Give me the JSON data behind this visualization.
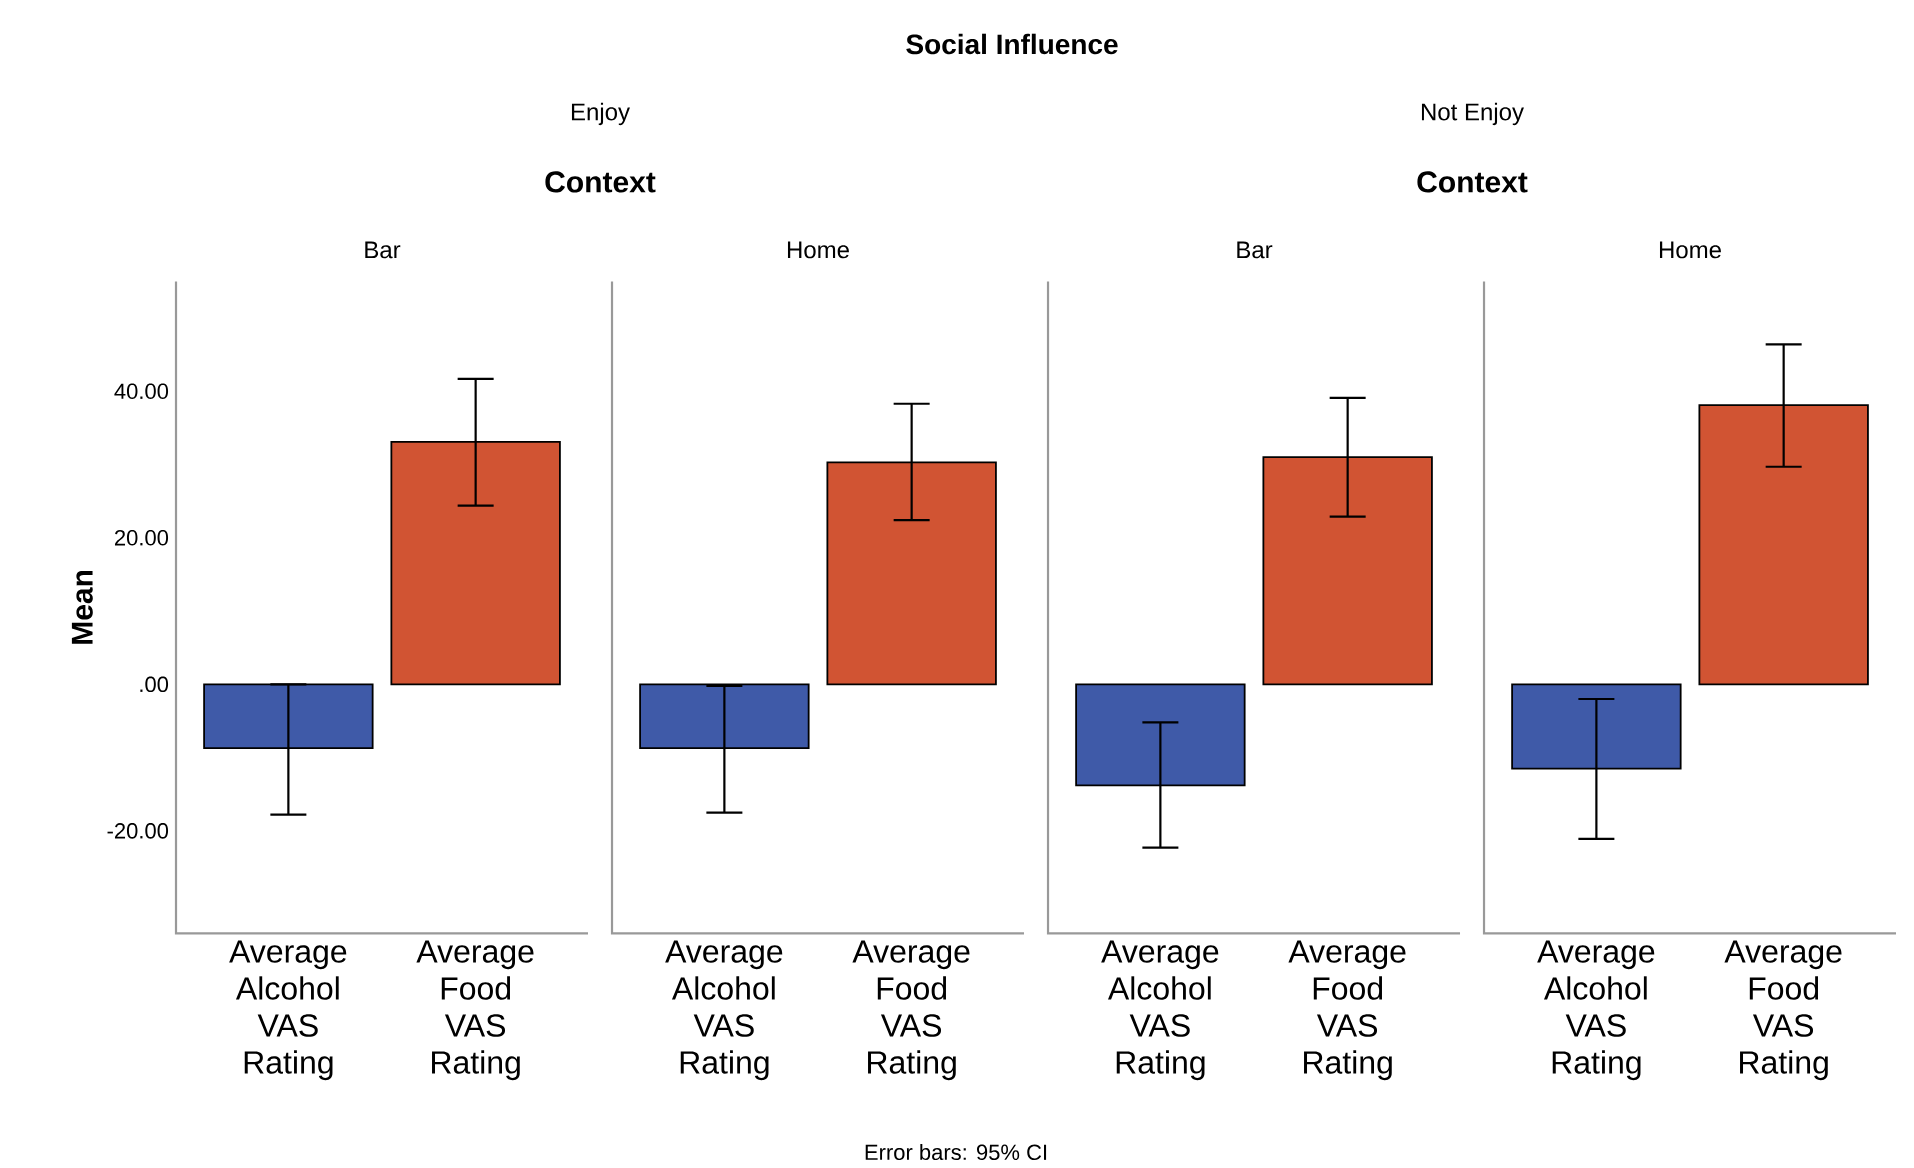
{
  "chart_data": [
    {
      "type": "bar",
      "title": "Bar",
      "ylabel": "Mean",
      "categories": [
        "Average Alcohol VAS Rating",
        "Average Food VAS Rating"
      ],
      "values": [
        -8.7,
        33.1
      ],
      "colors": [
        "#3f5aa8",
        "#d15433"
      ],
      "errors": [
        [
          -17.8,
          0
        ],
        [
          24.4,
          41.7
        ]
      ],
      "ylim": [
        -34,
        55
      ],
      "yticks": [
        {
          "value": -20,
          "label": "-20.00"
        },
        {
          "value": 0,
          "label": ".00"
        },
        {
          "value": 20,
          "label": "20.00"
        },
        {
          "value": 40,
          "label": "40.00"
        }
      ],
      "annotations": [
        "Social Influence",
        "Enjoy",
        "Context",
        "Error bars: 95% CI"
      ]
    },
    {
      "type": "bar",
      "title": "Home",
      "categories": [
        "Average Alcohol VAS Rating",
        "Average Food VAS Rating"
      ],
      "values": [
        -8.7,
        30.3
      ],
      "colors": [
        "#3f5aa8",
        "#d15433"
      ],
      "errors": [
        [
          -17.5,
          -0.2
        ],
        [
          22.4,
          38.3
        ]
      ],
      "ylim": [
        -34,
        55
      ],
      "yticks": [
        {
          "value": -20,
          "label": null
        },
        {
          "value": 0,
          "label": null
        },
        {
          "value": 20,
          "label": null
        },
        {
          "value": 40,
          "label": null
        }
      ],
      "tick_labels": "x"
    },
    {
      "type": "bar",
      "title": "Bar",
      "categories": [
        "Average Alcohol VAS Rating",
        "Average Food VAS Rating"
      ],
      "values": [
        -13.8,
        31.0
      ],
      "colors": [
        "#3f5aa8",
        "#d15433"
      ],
      "errors": [
        [
          -22.3,
          -5.2
        ],
        [
          22.9,
          39.1
        ]
      ],
      "ylim": [
        -34,
        55
      ],
      "yticks": [
        {
          "value": -20,
          "label": null
        },
        {
          "value": 0,
          "label": null
        },
        {
          "value": 20,
          "label": null
        },
        {
          "value": 40,
          "label": null
        }
      ],
      "tick_labels": "x",
      "annotations": [
        "Not Enjoy",
        "Context"
      ]
    },
    {
      "type": "bar",
      "title": "Home",
      "categories": [
        "Average Alcohol VAS Rating",
        "Average Food VAS Rating"
      ],
      "values": [
        -11.5,
        38.1
      ],
      "colors": [
        "#3f5aa8",
        "#d15433"
      ],
      "errors": [
        [
          -21.1,
          -2.0
        ],
        [
          29.7,
          46.4
        ]
      ],
      "ylim": [
        -34,
        55
      ],
      "yticks": [
        {
          "value": -20,
          "label": null
        },
        {
          "value": 0,
          "label": null
        },
        {
          "value": 20,
          "label": null
        },
        {
          "value": 40,
          "label": null
        }
      ],
      "tick_labels": "x"
    }
  ]
}
